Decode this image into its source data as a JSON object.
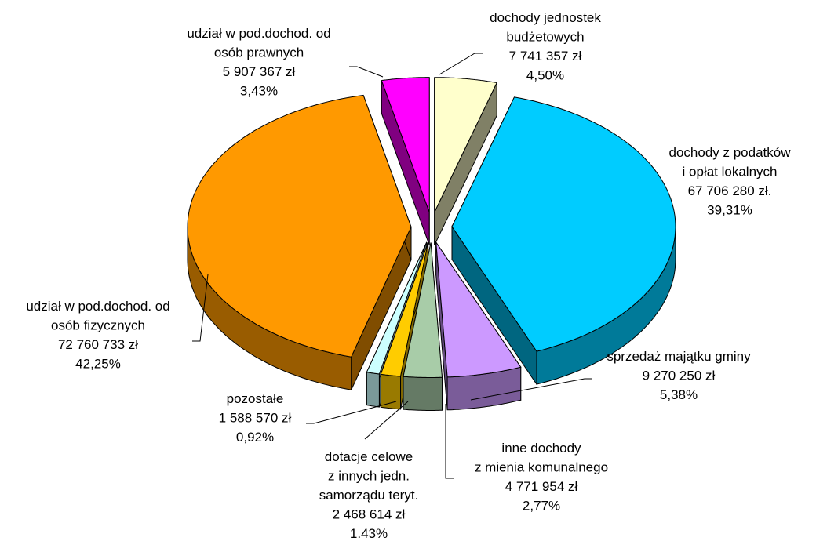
{
  "chart_data": {
    "type": "pie3d",
    "categories": [
      "dochody jednostek\nbudżetowych",
      "dochody z podatków\ni opłat lokalnych",
      "sprzedaż majątku gminy",
      "inne dochody\nz mienia komunalnego",
      "dotacje celowe\nz innych jedn.\nsamorządu teryt.",
      "pozostałe",
      "udział w pod.dochod. od\nosób fizycznych",
      "udział w pod.dochod. od\nosób prawnych"
    ],
    "values": [
      4.5,
      39.31,
      5.38,
      2.77,
      1.43,
      0.92,
      42.25,
      3.43
    ],
    "value_labels": [
      "4,50%",
      "39,31%",
      "5,38%",
      "2,77%",
      "1.43%",
      "0,92%",
      "42,25%",
      "3,43%"
    ],
    "amounts": [
      7741357,
      67706280,
      9270250,
      4771954,
      2468614,
      1588570,
      72760733,
      5907367
    ],
    "amount_labels": [
      "7 741 357 zł",
      "67 706 280 zł.",
      "9 270 250 zł",
      "4 771 954 zł",
      "2 468 614 zł",
      "1 588 570 zł",
      "72 760 733 zł",
      "5 907 367 zł"
    ],
    "colors": [
      "#FFFFCC",
      "#00CCFF",
      "#CC99FF",
      "#A8CCA8",
      "#FFCC00",
      "#CCFFFF",
      "#FF9900",
      "#FF00FF"
    ]
  }
}
